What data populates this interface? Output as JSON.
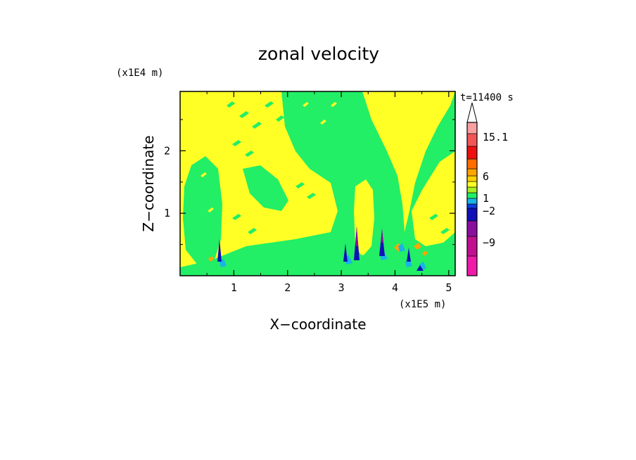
{
  "chart_data": {
    "type": "heatmap",
    "title": "zonal velocity",
    "xlabel": "X−coordinate",
    "ylabel": "Z−coordinate",
    "x_unit": "(x1E5 m)",
    "y_unit": "(x1E4 m)",
    "time_label": "t=11400 s",
    "xlim": [
      0,
      5.12
    ],
    "ylim": [
      0,
      2.95
    ],
    "x_ticks": [
      "1",
      "2",
      "3",
      "4",
      "5"
    ],
    "x_tick_values": [
      1,
      2,
      3,
      4,
      5
    ],
    "y_ticks": [
      "1",
      "2"
    ],
    "y_tick_values": [
      1,
      2
    ],
    "colorbar": {
      "colors": [
        "#ee1aa8",
        "#c0108f",
        "#8a0f9e",
        "#1010b8",
        "#0a3de0",
        "#19b4e6",
        "#22ee66",
        "#aaee22",
        "#ffff26",
        "#ffd200",
        "#ffa500",
        "#ff6d00",
        "#ee1010",
        "#f25656",
        "#f9a0a0",
        "#ffffff"
      ],
      "tick_labels": [
        "15.1",
        "6",
        "1",
        "−2",
        "−9"
      ],
      "extend": "max"
    },
    "dominant_fields": {
      "green": "#22ee66",
      "yellow": "#ffff26",
      "orange": "#ffa500",
      "cyan": "#19b4e6",
      "blue": "#1010b8",
      "magenta": "#8a0f9e"
    }
  }
}
